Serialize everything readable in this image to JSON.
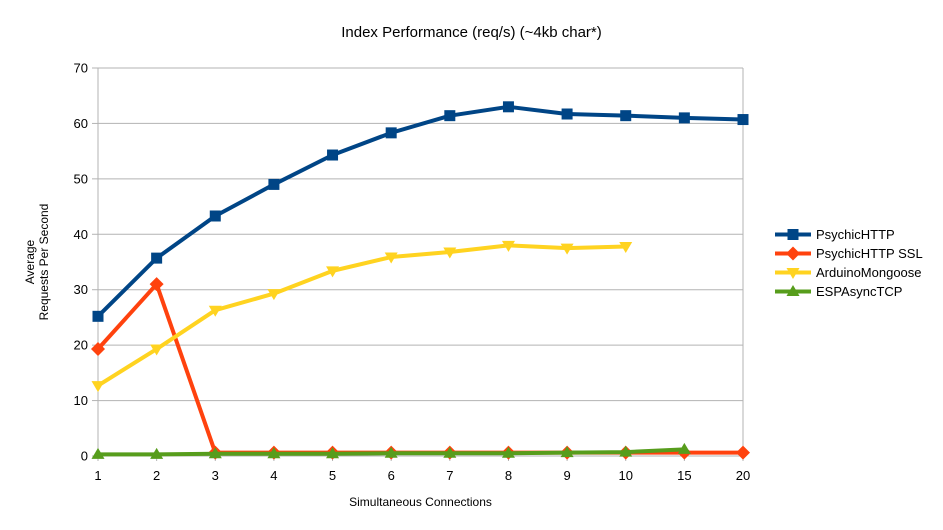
{
  "chart_data": {
    "type": "line",
    "title": "Index Performance (req/s) (~4kb char*)",
    "xlabel": "Simultaneous Connections",
    "ylabel": "Average\nRequests Per Second",
    "categories": [
      "1",
      "2",
      "3",
      "4",
      "5",
      "6",
      "7",
      "8",
      "9",
      "10",
      "15",
      "20"
    ],
    "ylim": [
      0,
      70
    ],
    "ytick_step": 10,
    "grid": "horizontal",
    "legend_position": "right",
    "series": [
      {
        "name": "PsychicHTTP",
        "color": "#004586",
        "marker": "square",
        "values": [
          25.2,
          35.7,
          43.3,
          49.0,
          54.3,
          58.3,
          61.4,
          63.0,
          61.7,
          61.4,
          61.0,
          60.7
        ]
      },
      {
        "name": "PsychicHTTP SSL",
        "color": "#ff420e",
        "marker": "diamond",
        "values": [
          19.3,
          31.0,
          0.6,
          0.6,
          0.6,
          0.6,
          0.6,
          0.6,
          0.6,
          0.6,
          0.6,
          0.6
        ]
      },
      {
        "name": "ArduinoMongoose",
        "color": "#ffd320",
        "marker": "triangle-down",
        "values": [
          12.7,
          19.3,
          26.3,
          29.3,
          33.4,
          35.9,
          36.8,
          38.0,
          37.5,
          37.8
        ]
      },
      {
        "name": "ESPAsyncTCP",
        "color": "#579d1c",
        "marker": "triangle-up",
        "values": [
          0.3,
          0.3,
          0.4,
          0.4,
          0.4,
          0.5,
          0.5,
          0.5,
          0.6,
          0.7,
          1.2
        ]
      }
    ],
    "colors": {
      "grid": "#b3b3b3",
      "axis": "#b3b3b3",
      "text": "#000000",
      "background": "#ffffff"
    }
  }
}
